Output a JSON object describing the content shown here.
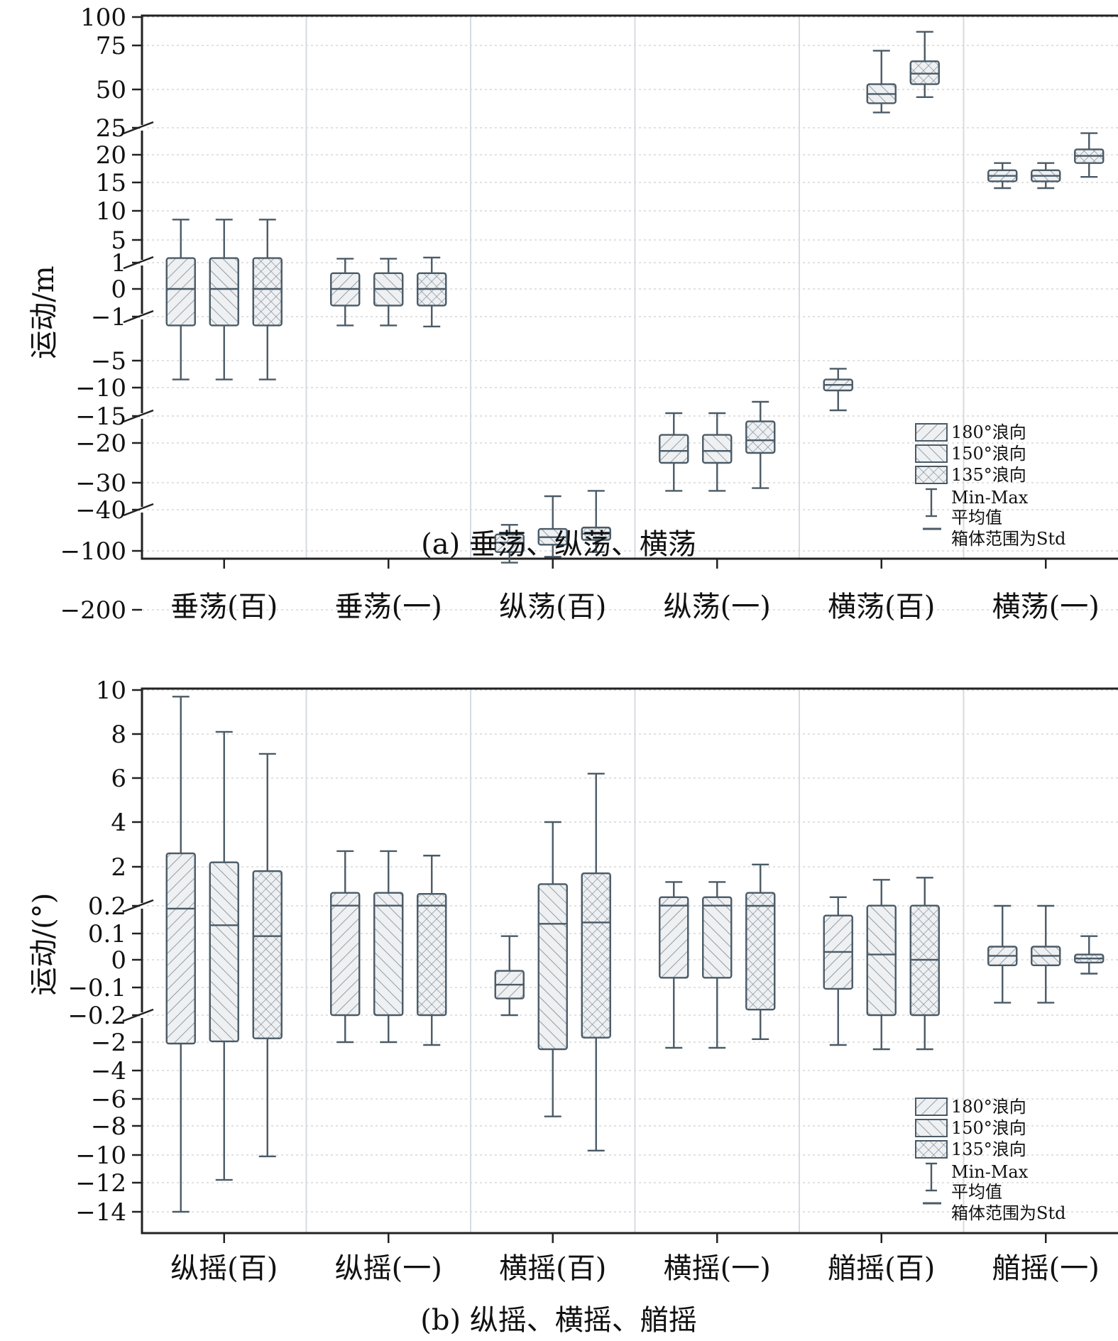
{
  "figure": {
    "caption_a": "(a) 垂荡、纵荡、横荡",
    "caption_b": "(b) 纵摇、横摇、艏摇"
  },
  "chart_data": [
    {
      "type": "box",
      "id": "a",
      "ylabel": "运动/m",
      "y_ticks": [
        "100",
        "75",
        "50",
        "25",
        "20",
        "15",
        "10",
        "5",
        "1",
        "0",
        "−1",
        "−5",
        "−10",
        "−15",
        "−20",
        "−30",
        "−40",
        "−100",
        "−200"
      ],
      "y_tick_values": [
        100,
        75,
        50,
        25,
        20,
        15,
        10,
        5,
        1,
        0,
        -1,
        -5,
        -10,
        -15,
        -20,
        -30,
        -40,
        -100,
        -200
      ],
      "axis_breaks": [
        25,
        1,
        -1,
        -15,
        -40
      ],
      "categories": [
        "垂荡(百)",
        "垂荡(一)",
        "纵荡(百)",
        "纵荡(一)",
        "横荡(百)",
        "横荡(一)"
      ],
      "legend": {
        "series_labels": [
          "180°浪向",
          "150°浪向",
          "135°浪向"
        ],
        "minmax_label": "Min-Max",
        "mean_label": "平均值",
        "box_note": "箱体范围为Std",
        "position": "bottom-right"
      },
      "series": [
        {
          "name": "180°浪向",
          "boxes": [
            {
              "min": -8.5,
              "q1": -1.8,
              "mean": 0,
              "q3": 1.8,
              "max": 8.5
            },
            {
              "min": -1.8,
              "q1": -0.6,
              "mean": 0,
              "q3": 0.6,
              "max": 1.7
            },
            {
              "min": -120,
              "q1": -102,
              "mean": -88,
              "q3": -76,
              "max": -62
            },
            {
              "min": -33,
              "q1": -25,
              "mean": -22,
              "q3": -18.5,
              "max": -14.5
            },
            {
              "min": -14,
              "q1": -10.5,
              "mean": -9.5,
              "q3": -8.5,
              "max": -6.5
            },
            {
              "min": 14,
              "q1": 15.2,
              "mean": 16.2,
              "q3": 17.2,
              "max": 18.5
            }
          ]
        },
        {
          "name": "150°浪向",
          "boxes": [
            {
              "min": -8.5,
              "q1": -1.8,
              "mean": 0,
              "q3": 1.8,
              "max": 8.5
            },
            {
              "min": -1.8,
              "q1": -0.6,
              "mean": 0,
              "q3": 0.6,
              "max": 1.7
            },
            {
              "min": -110,
              "q1": -91,
              "mean": -80,
              "q3": -68,
              "max": -35
            },
            {
              "min": -33,
              "q1": -25,
              "mean": -22,
              "q3": -18.5,
              "max": -14.5
            },
            {
              "min": 35,
              "q1": 41,
              "mean": 47,
              "q3": 53,
              "max": 72
            },
            {
              "min": 14,
              "q1": 15.2,
              "mean": 16.2,
              "q3": 17.2,
              "max": 18.5
            }
          ]
        },
        {
          "name": "135°浪向",
          "boxes": [
            {
              "min": -8.5,
              "q1": -1.8,
              "mean": 0,
              "q3": 1.8,
              "max": 8.5
            },
            {
              "min": -1.9,
              "q1": -0.6,
              "mean": 0,
              "q3": 0.6,
              "max": 1.9
            },
            {
              "min": -102,
              "q1": -84,
              "mean": -75,
              "q3": -66,
              "max": -33
            },
            {
              "min": -32,
              "q1": -22.5,
              "mean": -19.5,
              "q3": -16,
              "max": -12.5
            },
            {
              "min": 45,
              "q1": 53,
              "mean": 59,
              "q3": 66,
              "max": 87
            },
            {
              "min": 16,
              "q1": 18.5,
              "mean": 19.8,
              "q3": 21,
              "max": 24
            }
          ]
        }
      ],
      "plot_order": [
        [
          0,
          1,
          2
        ],
        [
          0,
          1,
          2
        ],
        [
          0,
          1,
          2
        ],
        [
          0,
          1,
          2
        ],
        [
          0,
          1,
          2
        ],
        [
          0,
          1,
          2
        ]
      ]
    },
    {
      "type": "box",
      "id": "b",
      "ylabel": "运动/(°)",
      "y_ticks": [
        "10",
        "8",
        "6",
        "4",
        "2",
        "0.2",
        "0.1",
        "0",
        "−0.1",
        "−0.2",
        "−2",
        "−4",
        "−6",
        "−8",
        "−10",
        "−12",
        "−14"
      ],
      "y_tick_values": [
        10,
        8,
        6,
        4,
        2,
        0.2,
        0.1,
        0,
        -0.1,
        -0.2,
        -2,
        -4,
        -6,
        -8,
        -10,
        -12,
        -14
      ],
      "axis_breaks": [
        0.2,
        -0.2
      ],
      "categories": [
        "纵摇(百)",
        "纵摇(一)",
        "横摇(百)",
        "横摇(一)",
        "艏摇(百)",
        "艏摇(一)"
      ],
      "legend": {
        "series_labels": [
          "180°浪向",
          "150°浪向",
          "135°浪向"
        ],
        "minmax_label": "Min-Max",
        "mean_label": "平均值",
        "box_note": "箱体范围为Std",
        "position": "bottom-right"
      },
      "series": [
        {
          "name": "180°浪向",
          "boxes": [
            {
              "min": -14.5,
              "q1": -2.1,
              "mean": 0.19,
              "q3": 2.6,
              "max": 9.7
            },
            {
              "min": -2.0,
              "q1": -0.2,
              "mean": 0.21,
              "q3": 0.8,
              "max": 2.7
            },
            {
              "min": -0.2,
              "q1": -0.14,
              "mean": -0.09,
              "q3": -0.04,
              "max": 0.09
            },
            {
              "min": -2.4,
              "q1": -0.065,
              "mean": 0.21,
              "q3": 0.6,
              "max": 1.3
            },
            {
              "min": -2.2,
              "q1": -0.105,
              "mean": 0.03,
              "q3": 0.165,
              "max": 0.6
            },
            {
              "min": -0.155,
              "q1": -0.02,
              "mean": 0.015,
              "q3": 0.05,
              "max": 0.2
            }
          ]
        },
        {
          "name": "150°浪向",
          "boxes": [
            {
              "min": -11.8,
              "q1": -1.95,
              "mean": 0.13,
              "q3": 2.2,
              "max": 8.1
            },
            {
              "min": -2.0,
              "q1": -0.2,
              "mean": 0.21,
              "q3": 0.8,
              "max": 2.7
            },
            {
              "min": -7.3,
              "q1": -2.5,
              "mean": 0.135,
              "q3": 1.2,
              "max": 4.0
            },
            {
              "min": -2.4,
              "q1": -0.065,
              "mean": 0.21,
              "q3": 0.6,
              "max": 1.3
            },
            {
              "min": -2.5,
              "q1": -0.2,
              "mean": 0.02,
              "q3": 0.21,
              "max": 1.4
            },
            {
              "min": -0.155,
              "q1": -0.02,
              "mean": 0.015,
              "q3": 0.05,
              "max": 0.2
            }
          ]
        },
        {
          "name": "135°浪向",
          "boxes": [
            {
              "min": -10.1,
              "q1": -1.75,
              "mean": 0.09,
              "q3": 1.8,
              "max": 7.1
            },
            {
              "min": -2.2,
              "q1": -0.2,
              "mean": 0.21,
              "q3": 0.75,
              "max": 2.5
            },
            {
              "min": -9.7,
              "q1": -1.7,
              "mean": 0.14,
              "q3": 1.7,
              "max": 6.2
            },
            {
              "min": -1.8,
              "q1": -0.18,
              "mean": 0.2,
              "q3": 0.8,
              "max": 2.1
            },
            {
              "min": -2.5,
              "q1": -0.2,
              "mean": 0,
              "q3": 0.21,
              "max": 1.5
            },
            {
              "min": -0.05,
              "q1": -0.01,
              "mean": 0.005,
              "q3": 0.02,
              "max": 0.09
            }
          ]
        }
      ],
      "plot_order": [
        [
          0,
          1,
          2
        ],
        [
          0,
          1,
          2
        ],
        [
          0,
          1,
          2
        ],
        [
          0,
          1,
          2
        ],
        [
          0,
          1,
          2
        ],
        [
          0,
          1,
          2
        ]
      ]
    }
  ],
  "colors": {
    "axis": "#222222",
    "box_stroke": "#4a5a66",
    "box_fill": "#e9ecef",
    "hatch": "#7b8894",
    "grid_dotted": "#c9c9c9",
    "separator": "#d6dbe0"
  }
}
